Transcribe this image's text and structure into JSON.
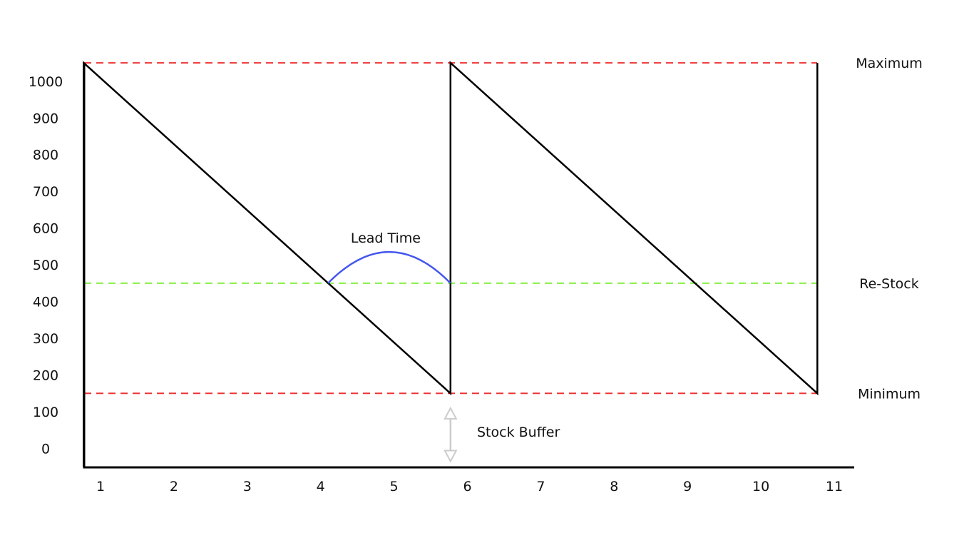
{
  "chart_data": {
    "type": "line",
    "title": "",
    "xlabel": "",
    "ylabel": "",
    "x_ticks": [
      "1",
      "2",
      "3",
      "4",
      "5",
      "6",
      "7",
      "8",
      "9",
      "10",
      "11"
    ],
    "y_ticks": [
      "0",
      "100",
      "200",
      "300",
      "400",
      "500",
      "600",
      "700",
      "800",
      "900",
      "1000"
    ],
    "xlim": [
      0.77,
      11.27
    ],
    "ylim": [
      -50,
      1050
    ],
    "grid": false,
    "series": [
      {
        "color": "#000000",
        "points": [
          [
            0.77,
            -50
          ],
          [
            0.77,
            1050
          ],
          [
            5.77,
            150
          ],
          [
            5.77,
            1050
          ],
          [
            10.77,
            150
          ],
          [
            10.77,
            1050
          ]
        ]
      }
    ],
    "reference_lines": [
      {
        "label": "Maximum",
        "y": 1050,
        "color": "#ee3333",
        "style": "dashed"
      },
      {
        "label": "Re-Stock",
        "y": 450,
        "color": "#88ee44",
        "style": "dashed"
      },
      {
        "label": "Minimum",
        "y": 150,
        "color": "#ee3333",
        "style": "dashed"
      }
    ],
    "annotations": [
      {
        "label": "Lead Time",
        "x_start": 4.1,
        "x_end": 5.77,
        "y": 450,
        "peak_y": 535,
        "color": "#4455ee"
      },
      {
        "label": "Stock Buffer",
        "x": 5.77,
        "y_top": 110,
        "y_bottom": -35,
        "color": "#cccccc"
      }
    ]
  }
}
